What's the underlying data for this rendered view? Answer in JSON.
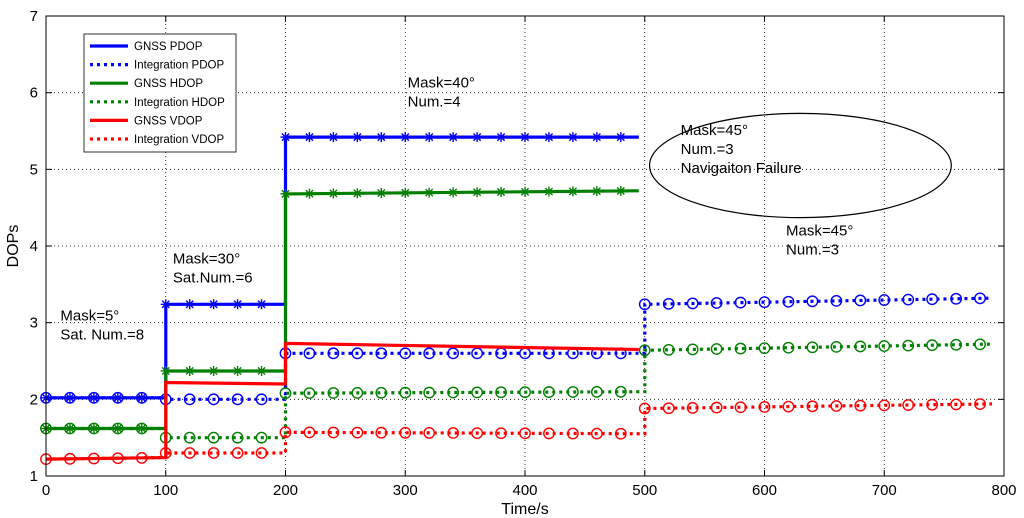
{
  "chart_data": {
    "type": "line",
    "xlabel": "Time/s",
    "ylabel": "DOPs",
    "xlim": [
      0,
      800
    ],
    "ylim": [
      1,
      7
    ],
    "xticks": [
      0,
      100,
      200,
      300,
      400,
      500,
      600,
      700,
      800
    ],
    "yticks": [
      1,
      2,
      3,
      4,
      5,
      6,
      7
    ],
    "grid": true,
    "legend_position": "top-left",
    "series": [
      {
        "name": "GNSS PDOP",
        "color": "#0000ff",
        "style": "solid",
        "marker": "star",
        "segments": [
          {
            "x_start": 0,
            "x_end": 100,
            "y_start": 2.02,
            "y_end": 2.02
          },
          {
            "x_start": 100,
            "x_end": 200,
            "y_start": 3.24,
            "y_end": 3.24
          },
          {
            "x_start": 200,
            "x_end": 495,
            "y_start": 5.42,
            "y_end": 5.42
          }
        ]
      },
      {
        "name": "Integration PDOP",
        "color": "#0000ff",
        "style": "dotted",
        "marker": "circle",
        "segments": [
          {
            "x_start": 0,
            "x_end": 100,
            "y_start": 2.02,
            "y_end": 2.02
          },
          {
            "x_start": 100,
            "x_end": 200,
            "y_start": 2.0,
            "y_end": 2.0
          },
          {
            "x_start": 200,
            "x_end": 500,
            "y_start": 2.6,
            "y_end": 2.6
          },
          {
            "x_start": 500,
            "x_end": 790,
            "y_start": 3.24,
            "y_end": 3.32
          }
        ]
      },
      {
        "name": "GNSS HDOP",
        "color": "#008000",
        "style": "solid",
        "marker": "star",
        "segments": [
          {
            "x_start": 0,
            "x_end": 100,
            "y_start": 1.62,
            "y_end": 1.62
          },
          {
            "x_start": 100,
            "x_end": 200,
            "y_start": 2.37,
            "y_end": 2.37
          },
          {
            "x_start": 200,
            "x_end": 495,
            "y_start": 4.68,
            "y_end": 4.72
          }
        ]
      },
      {
        "name": "Integration HDOP",
        "color": "#008000",
        "style": "dotted",
        "marker": "circle",
        "segments": [
          {
            "x_start": 0,
            "x_end": 100,
            "y_start": 1.62,
            "y_end": 1.62
          },
          {
            "x_start": 100,
            "x_end": 200,
            "y_start": 1.5,
            "y_end": 1.5
          },
          {
            "x_start": 200,
            "x_end": 500,
            "y_start": 2.08,
            "y_end": 2.1
          },
          {
            "x_start": 500,
            "x_end": 790,
            "y_start": 2.64,
            "y_end": 2.72
          }
        ]
      },
      {
        "name": "GNSS VDOP",
        "color": "#ff0000",
        "style": "solid",
        "marker": "none",
        "segments": [
          {
            "x_start": 0,
            "x_end": 100,
            "y_start": 1.22,
            "y_end": 1.24
          },
          {
            "x_start": 100,
            "x_end": 200,
            "y_start": 2.22,
            "y_end": 2.2
          },
          {
            "x_start": 200,
            "x_end": 495,
            "y_start": 2.73,
            "y_end": 2.65
          }
        ]
      },
      {
        "name": "Integration VDOP",
        "color": "#ff0000",
        "style": "dotted",
        "marker": "circle",
        "segments": [
          {
            "x_start": 0,
            "x_end": 100,
            "y_start": 1.22,
            "y_end": 1.24
          },
          {
            "x_start": 100,
            "x_end": 200,
            "y_start": 1.3,
            "y_end": 1.3
          },
          {
            "x_start": 200,
            "x_end": 500,
            "y_start": 1.57,
            "y_end": 1.55
          },
          {
            "x_start": 500,
            "x_end": 790,
            "y_start": 1.88,
            "y_end": 1.94
          }
        ]
      }
    ],
    "annotations": [
      {
        "lines": [
          "Mask=5°",
          "Sat. Num.=8"
        ],
        "x": 12,
        "y": 3.03
      },
      {
        "lines": [
          "Mask=30°",
          "Sat.Num.=6"
        ],
        "x": 106,
        "y": 3.77
      },
      {
        "lines": [
          "Mask=40°",
          "Num.=4"
        ],
        "x": 302,
        "y": 6.07
      },
      {
        "lines": [
          "Mask=45°",
          "Num.=3",
          "Navigaiton Failure"
        ],
        "x": 530,
        "y": 5.45
      },
      {
        "lines": [
          "Mask=45°",
          "Num.=3"
        ],
        "x": 618,
        "y": 4.14
      }
    ],
    "ellipse": {
      "cx": 630,
      "cy": 5.05,
      "rx": 126,
      "ry": 0.68
    }
  }
}
